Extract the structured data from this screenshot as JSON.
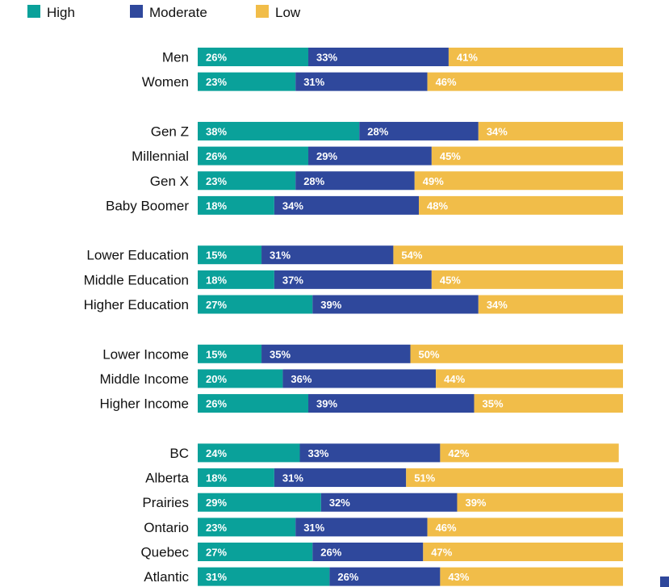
{
  "chart_data": {
    "type": "bar",
    "orientation": "horizontal",
    "stacked": true,
    "percent_suffix": "%",
    "legend": {
      "placement": "top-left",
      "entries": [
        {
          "name": "High",
          "color": "#0aa19a"
        },
        {
          "name": "Moderate",
          "color": "#2f489c"
        },
        {
          "name": "Low",
          "color": "#f1bd49"
        }
      ]
    },
    "label_colors": {
      "High": "#ffffff",
      "Moderate": "#ffffff",
      "Low": "#ffffff"
    },
    "groups": [
      {
        "categories": [
          "Men",
          "Women"
        ]
      },
      {
        "categories": [
          "Gen Z",
          "Millennial",
          "Gen X",
          "Baby Boomer"
        ]
      },
      {
        "categories": [
          "Lower Education",
          "Middle Education",
          "Higher Education"
        ]
      },
      {
        "categories": [
          "Lower Income",
          "Middle Income",
          "Higher Income"
        ]
      },
      {
        "categories": [
          "BC",
          "Alberta",
          "Prairies",
          "Ontario",
          "Quebec",
          "Atlantic"
        ]
      }
    ],
    "categories": [
      "Men",
      "Women",
      "Gen Z",
      "Millennial",
      "Gen X",
      "Baby Boomer",
      "Lower Education",
      "Middle Education",
      "Higher Education",
      "Lower Income",
      "Middle Income",
      "Higher Income",
      "BC",
      "Alberta",
      "Prairies",
      "Ontario",
      "Quebec",
      "Atlantic"
    ],
    "series": [
      {
        "name": "High",
        "values": [
          26,
          23,
          38,
          26,
          23,
          18,
          15,
          18,
          27,
          15,
          20,
          26,
          24,
          18,
          29,
          23,
          27,
          31
        ]
      },
      {
        "name": "Moderate",
        "values": [
          33,
          31,
          28,
          29,
          28,
          34,
          31,
          37,
          39,
          35,
          36,
          39,
          33,
          31,
          32,
          31,
          26,
          26
        ]
      },
      {
        "name": "Low",
        "values": [
          41,
          46,
          34,
          45,
          49,
          48,
          54,
          45,
          34,
          50,
          44,
          35,
          42,
          51,
          39,
          46,
          47,
          43
        ]
      }
    ],
    "xlim": [
      0,
      100
    ]
  }
}
